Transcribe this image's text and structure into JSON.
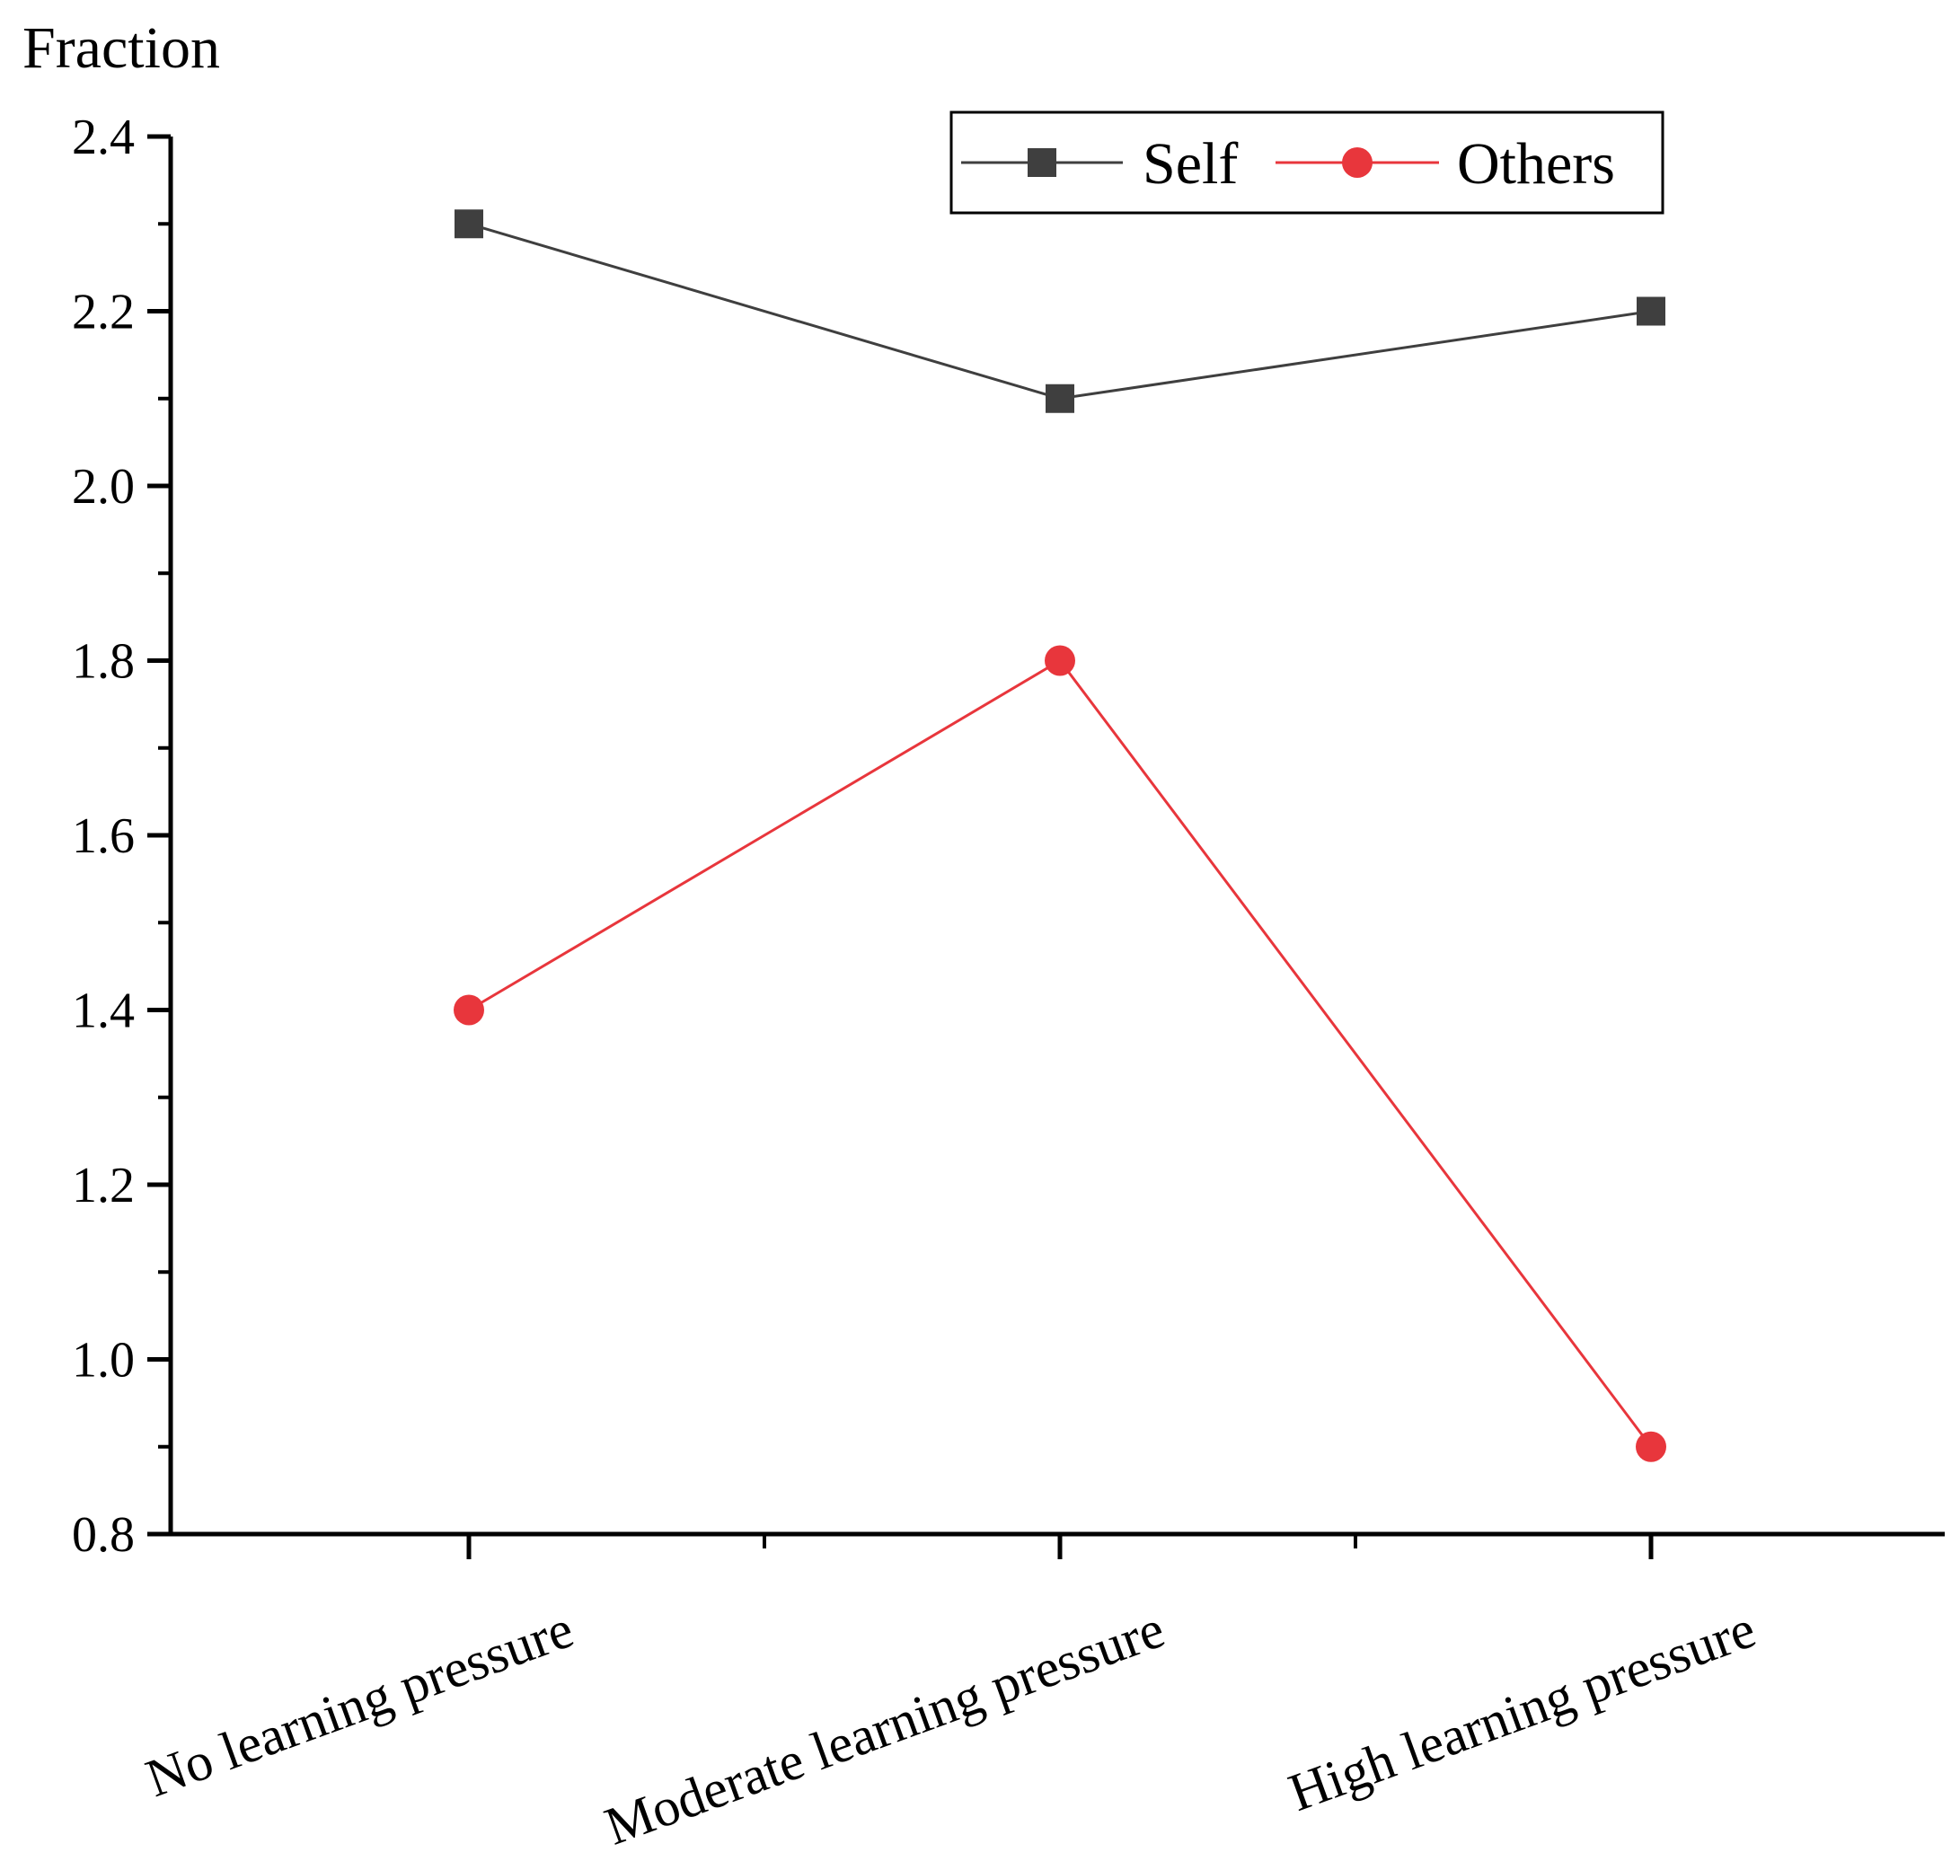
{
  "chart_data": {
    "type": "line",
    "categories": [
      "No learning pressure",
      "Moderate learning pressure",
      "High learning pressure"
    ],
    "series": [
      {
        "name": "Self",
        "values": [
          2.3,
          2.1,
          2.2
        ],
        "color": "#3f3f3f",
        "marker": "square"
      },
      {
        "name": "Others",
        "values": [
          1.4,
          1.8,
          0.9
        ],
        "color": "#e8363c",
        "marker": "circle"
      }
    ],
    "ylabel": "Fraction",
    "xlabel": "",
    "ylim": [
      0.8,
      2.4
    ],
    "yticks": [
      "0.8",
      "1.0",
      "1.2",
      "1.4",
      "1.6",
      "1.8",
      "2.0",
      "2.2",
      "2.4"
    ],
    "grid": false,
    "legend_position": "top-right"
  }
}
